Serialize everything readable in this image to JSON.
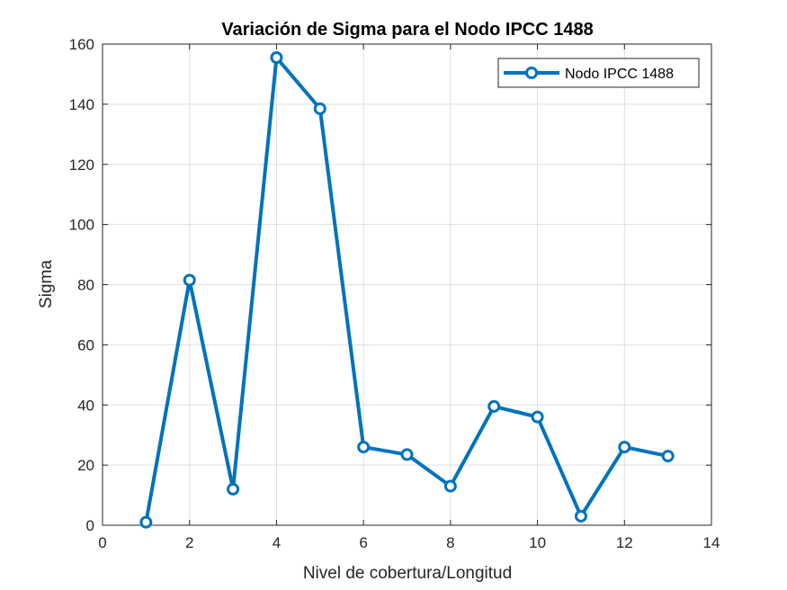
{
  "chart_data": {
    "type": "line",
    "title": "Variación de Sigma para el Nodo IPCC 1488",
    "xlabel": "Nivel de cobertura/Longitud",
    "ylabel": "Sigma",
    "xlim": [
      0,
      14
    ],
    "ylim": [
      0,
      160
    ],
    "xticks": [
      0,
      2,
      4,
      6,
      8,
      10,
      12,
      14
    ],
    "yticks": [
      0,
      20,
      40,
      60,
      80,
      100,
      120,
      140,
      160
    ],
    "grid": true,
    "legend_position": "top-right",
    "series": [
      {
        "name": "Nodo IPCC 1488",
        "color": "#0072BD",
        "marker": "circle",
        "x": [
          1,
          2,
          3,
          4,
          5,
          6,
          7,
          8,
          9,
          10,
          11,
          12,
          13
        ],
        "y": [
          1,
          81.5,
          12,
          155.5,
          138.5,
          26,
          23.5,
          13,
          39.5,
          36,
          3,
          26,
          23
        ]
      }
    ]
  }
}
